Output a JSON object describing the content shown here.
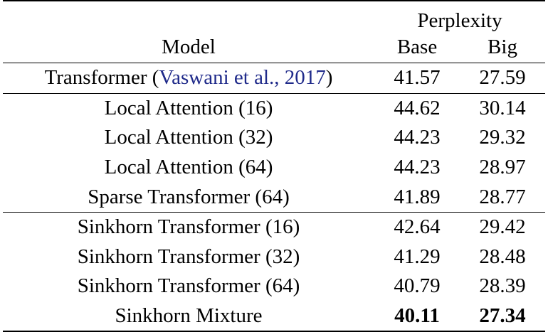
{
  "table": {
    "header": {
      "group_label": "Perplexity",
      "model_label": "Model",
      "base_label": "Base",
      "big_label": "Big"
    },
    "rows": [
      {
        "model": "Transformer (",
        "cite": "Vaswani et al., 2017",
        "model_suffix": ")",
        "base": "41.57",
        "big": "27.59"
      },
      {
        "model": "Local Attention (16)",
        "base": "44.62",
        "big": "30.14"
      },
      {
        "model": "Local Attention (32)",
        "base": "44.23",
        "big": "29.32"
      },
      {
        "model": "Local Attention (64)",
        "base": "44.23",
        "big": "28.97"
      },
      {
        "model": "Sparse Transformer (64)",
        "base": "41.89",
        "big": "28.77"
      },
      {
        "model": "Sinkhorn Transformer (16)",
        "base": "42.64",
        "big": "29.42"
      },
      {
        "model": "Sinkhorn Transformer (32)",
        "base": "41.29",
        "big": "28.48"
      },
      {
        "model": "Sinkhorn Transformer (64)",
        "base": "40.79",
        "big": "28.39"
      },
      {
        "model": "Sinkhorn Mixture",
        "base": "40.11",
        "big": "27.34",
        "bold": true
      }
    ]
  }
}
